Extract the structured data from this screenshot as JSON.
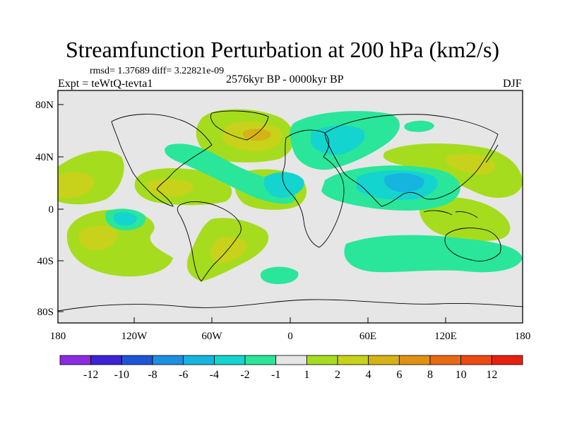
{
  "title": "Streamfunction Perturbation at 200 hPa (km2/s)",
  "stats_line": "rmsd= 1.37689 diff= 3.22821e-09",
  "experiment_label": "Expt = teWtQ-tevta1",
  "period_label": "2576kyr BP - 0000kyr BP",
  "season_label": "DJF",
  "lat_ticks": [
    "80N",
    "40N",
    "0",
    "40S",
    "80S"
  ],
  "lon_ticks": [
    "180",
    "120W",
    "60W",
    "0",
    "60E",
    "120E",
    "180"
  ],
  "colorbar": {
    "labels": [
      "-12",
      "-10",
      "-8",
      "-6",
      "-4",
      "-2",
      "-1",
      "1",
      "2",
      "4",
      "6",
      "8",
      "10",
      "12"
    ],
    "colors": [
      "#8a2be2",
      "#3d22d6",
      "#1e55d6",
      "#1c8fe0",
      "#15b5e0",
      "#14d4cf",
      "#2ae69a",
      "#e6e6e6",
      "#a6dc1e",
      "#c8d21a",
      "#d6b214",
      "#e09012",
      "#e86a10",
      "#ec4a10",
      "#e8200e"
    ]
  },
  "colors": {
    "neutral": "#e6e6e6",
    "pos1": "#a6dc1e",
    "pos2": "#c8d21a",
    "pos3": "#d6b214",
    "pos4": "#e09012",
    "neg1": "#2ae69a",
    "neg2": "#14d4cf",
    "neg3": "#15b5e0",
    "neg4": "#1c8fe0"
  }
}
